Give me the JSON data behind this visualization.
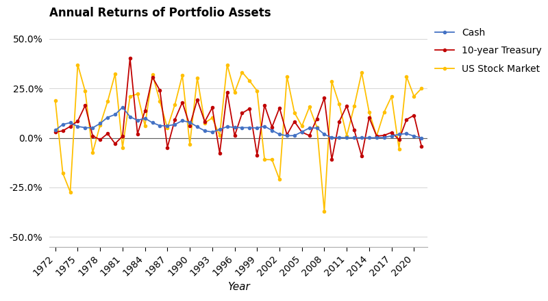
{
  "title": "Annual Returns of Portfolio Assets",
  "xlabel": "Year",
  "years": [
    1972,
    1973,
    1974,
    1975,
    1976,
    1977,
    1978,
    1979,
    1980,
    1981,
    1982,
    1983,
    1984,
    1985,
    1986,
    1987,
    1988,
    1989,
    1990,
    1991,
    1992,
    1993,
    1994,
    1995,
    1996,
    1997,
    1998,
    1999,
    2000,
    2001,
    2002,
    2003,
    2004,
    2005,
    2006,
    2007,
    2008,
    2009,
    2010,
    2011,
    2012,
    2013,
    2014,
    2015,
    2016,
    2017,
    2018,
    2019,
    2020,
    2021
  ],
  "cash": [
    0.039,
    0.068,
    0.077,
    0.058,
    0.052,
    0.051,
    0.073,
    0.104,
    0.118,
    0.155,
    0.107,
    0.089,
    0.099,
    0.077,
    0.062,
    0.061,
    0.068,
    0.087,
    0.079,
    0.056,
    0.036,
    0.03,
    0.043,
    0.057,
    0.053,
    0.052,
    0.052,
    0.05,
    0.059,
    0.038,
    0.018,
    0.011,
    0.012,
    0.031,
    0.05,
    0.05,
    0.018,
    0.002,
    0.002,
    0.001,
    0.001,
    0.001,
    0.001,
    0.001,
    0.003,
    0.01,
    0.018,
    0.022,
    0.009,
    0.0
  ],
  "treasury": [
    0.029,
    0.036,
    0.058,
    0.085,
    0.164,
    0.01,
    -0.009,
    0.022,
    -0.029,
    0.009,
    0.403,
    0.021,
    0.137,
    0.307,
    0.24,
    -0.048,
    0.092,
    0.18,
    0.062,
    0.193,
    0.082,
    0.153,
    -0.077,
    0.231,
    0.011,
    0.125,
    0.148,
    -0.086,
    0.165,
    0.055,
    0.152,
    0.016,
    0.083,
    0.029,
    0.012,
    0.097,
    0.202,
    -0.109,
    0.083,
    0.162,
    0.04,
    -0.091,
    0.103,
    0.009,
    0.013,
    0.028,
    -0.009,
    0.093,
    0.114,
    -0.042
  ],
  "stock": [
    0.189,
    -0.178,
    -0.273,
    0.37,
    0.236,
    -0.074,
    0.065,
    0.184,
    0.323,
    -0.049,
    0.21,
    0.222,
    0.062,
    0.321,
    0.184,
    0.051,
    0.168,
    0.316,
    -0.031,
    0.304,
    0.076,
    0.101,
    0.012,
    0.37,
    0.23,
    0.332,
    0.288,
    0.238,
    -0.109,
    -0.11,
    -0.21,
    0.311,
    0.128,
    0.06,
    0.156,
    0.055,
    -0.37,
    0.285,
    0.17,
    0.01,
    0.16,
    0.33,
    0.13,
    0.01,
    0.13,
    0.21,
    -0.055,
    0.31,
    0.21,
    0.25
  ],
  "cash_color": "#4472C4",
  "treasury_color": "#C00000",
  "stock_color": "#FFC000",
  "ylim": [
    -0.55,
    0.575
  ],
  "yticks": [
    -0.5,
    -0.25,
    0.0,
    0.25,
    0.5
  ],
  "background_color": "#ffffff",
  "grid_color": "#d9d9d9",
  "title_fontsize": 12,
  "axis_fontsize": 10,
  "legend_fontsize": 10
}
